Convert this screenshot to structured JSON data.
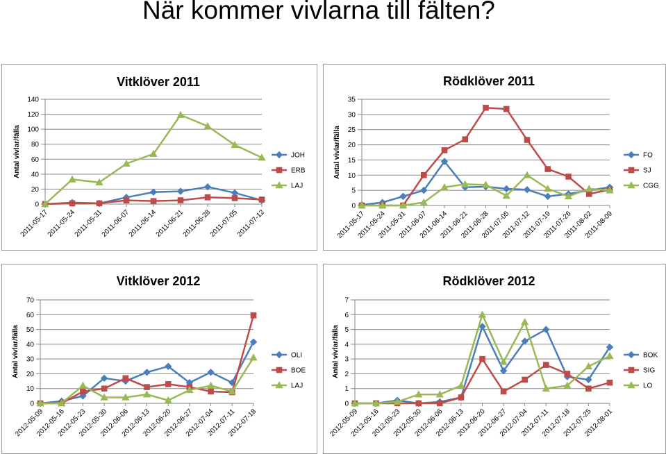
{
  "page": {
    "title": "När kommer vivlarna till fälten?"
  },
  "colors": {
    "blue": "#4a7ebb",
    "red": "#be4b48",
    "green": "#98b954",
    "grid": "#868686"
  },
  "chart_data": [
    {
      "type": "line",
      "title": "Vitklöver 2011",
      "ylabel": "Antal vivlar/fälla",
      "xlabel": "",
      "ylim": [
        0,
        140
      ],
      "ystep": 20,
      "grid": true,
      "legend": "right",
      "categories": [
        "2011-05-17",
        "2011-05-24",
        "2011-05-31",
        "2011-06-07",
        "2011-06-14",
        "2011-06-21",
        "2011-06-28",
        "2011-07-05",
        "2011-07-12"
      ],
      "series": [
        {
          "name": "JOH",
          "marker": "diamond",
          "color": "#4a7ebb",
          "values": [
            0,
            2,
            1,
            9,
            16,
            17,
            23,
            15,
            5
          ]
        },
        {
          "name": "ERB",
          "marker": "square",
          "color": "#be4b48",
          "values": [
            0,
            1,
            1,
            5,
            4,
            5,
            9,
            8,
            6
          ]
        },
        {
          "name": "LAJ",
          "marker": "triangle",
          "color": "#98b954",
          "values": [
            0,
            33,
            29,
            54,
            67,
            119,
            104,
            79,
            62
          ]
        }
      ]
    },
    {
      "type": "line",
      "title": "Rödklöver 2011",
      "ylabel": "Antal vivlar/fälla",
      "xlabel": "",
      "ylim": [
        0,
        35
      ],
      "ystep": 5,
      "grid": true,
      "legend": "right",
      "categories": [
        "2011-05-17",
        "2011-05-24",
        "2011-05-31",
        "2011-06-07",
        "2011-06-14",
        "2011-06-21",
        "2011-06-28",
        "2011-07-05",
        "2011-07-12",
        "2011-07-19",
        "2011-07-26",
        "2011-08-02",
        "2011-08-09"
      ],
      "series": [
        {
          "name": "FO",
          "marker": "diamond",
          "color": "#4a7ebb",
          "values": [
            0.2,
            1,
            3,
            5,
            14.5,
            6,
            6.2,
            5.5,
            5.2,
            3,
            3.8,
            5,
            6
          ]
        },
        {
          "name": "SJ",
          "marker": "square",
          "color": "#be4b48",
          "values": [
            0,
            0,
            0,
            10,
            18.2,
            21.8,
            32.2,
            31.8,
            21.6,
            12,
            9.5,
            3.8,
            5.2
          ]
        },
        {
          "name": "CGG",
          "marker": "triangle",
          "color": "#98b954",
          "values": [
            0,
            0,
            0,
            1,
            6,
            7,
            6.8,
            3.2,
            10,
            5.5,
            3,
            5.5,
            5
          ]
        }
      ]
    },
    {
      "type": "line",
      "title": "Vitklöver 2012",
      "ylabel": "Antal vivlar/fälla",
      "xlabel": "",
      "ylim": [
        0,
        70
      ],
      "ystep": 10,
      "grid": true,
      "legend": "right",
      "categories": [
        "2012-05-09",
        "2012-05-16",
        "2012-05-23",
        "2012-05-30",
        "2012-06-06",
        "2012-06-13",
        "2012-06-20",
        "2012-06-27",
        "2012-07-04",
        "2012-07-11",
        "2012-07-18"
      ],
      "series": [
        {
          "name": "OLI",
          "marker": "diamond",
          "color": "#4a7ebb",
          "values": [
            0,
            1.5,
            5,
            17,
            15,
            21,
            25,
            14,
            21,
            14,
            41.5
          ]
        },
        {
          "name": "BOE",
          "marker": "square",
          "color": "#be4b48",
          "values": [
            0,
            0,
            8,
            10,
            17,
            11,
            13,
            11,
            8,
            7.5,
            59.5
          ]
        },
        {
          "name": "LAJ",
          "marker": "triangle",
          "color": "#98b954",
          "values": [
            0,
            0,
            12,
            4,
            4,
            6,
            2,
            9,
            12,
            8,
            31
          ]
        }
      ]
    },
    {
      "type": "line",
      "title": "Rödklöver 2012",
      "ylabel": "Antal vivlar/fälla",
      "xlabel": "",
      "ylim": [
        0,
        7
      ],
      "ystep": 1,
      "grid": true,
      "legend": "right",
      "categories": [
        "2012-05-09",
        "2012-05-16",
        "2012-05-23",
        "2012-05-30",
        "2012-06-06",
        "2012-06-13",
        "2012-06-20",
        "2012-06-27",
        "2012-07-04",
        "2012-07-11",
        "2012-07-18",
        "2012-07-25",
        "2012-08-01"
      ],
      "series": [
        {
          "name": "BOK",
          "marker": "diamond",
          "color": "#4a7ebb",
          "values": [
            0,
            0,
            0.2,
            0,
            0.1,
            0.4,
            5.2,
            2.2,
            4.2,
            5,
            1.8,
            1.6,
            3.8
          ]
        },
        {
          "name": "SIG",
          "marker": "square",
          "color": "#be4b48",
          "values": [
            0,
            0,
            0,
            0,
            0,
            0.4,
            3,
            0.8,
            1.6,
            2.6,
            2,
            1,
            1.4
          ]
        },
        {
          "name": "LO",
          "marker": "triangle",
          "color": "#98b954",
          "values": [
            0,
            0,
            0.1,
            0.6,
            0.6,
            1.2,
            6,
            2.8,
            5.5,
            1,
            1.2,
            2.5,
            3.2
          ]
        }
      ]
    }
  ]
}
